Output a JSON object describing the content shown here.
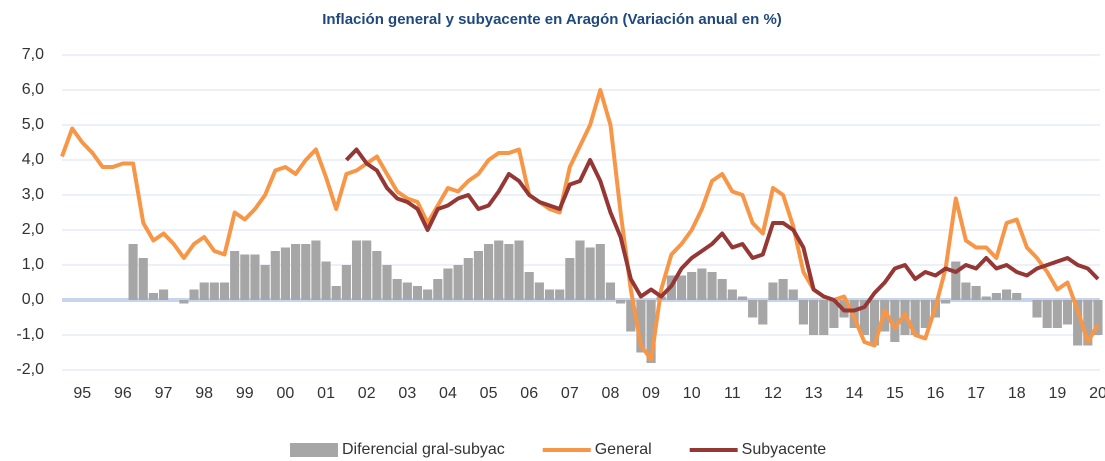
{
  "chart_data": {
    "type": "line",
    "title": "Inflación general y subyacente en Aragón  (Variación anual en %)",
    "x": [
      1995,
      1995.25,
      1995.5,
      1995.75,
      1996,
      1996.25,
      1996.5,
      1996.75,
      1997,
      1997.25,
      1997.5,
      1997.75,
      1998,
      1998.25,
      1998.5,
      1998.75,
      1999,
      1999.25,
      1999.5,
      1999.75,
      2000,
      2000.25,
      2000.5,
      2000.75,
      2001,
      2001.25,
      2001.5,
      2001.75,
      2002,
      2002.25,
      2002.5,
      2002.75,
      2003,
      2003.25,
      2003.5,
      2003.75,
      2004,
      2004.25,
      2004.5,
      2004.75,
      2005,
      2005.25,
      2005.5,
      2005.75,
      2006,
      2006.25,
      2006.5,
      2006.75,
      2007,
      2007.25,
      2007.5,
      2007.75,
      2008,
      2008.25,
      2008.5,
      2008.75,
      2009,
      2009.25,
      2009.5,
      2009.75,
      2010,
      2010.25,
      2010.5,
      2010.75,
      2011,
      2011.25,
      2011.5,
      2011.75,
      2012,
      2012.25,
      2012.5,
      2012.75,
      2013,
      2013.25,
      2013.5,
      2013.75,
      2014,
      2014.25,
      2014.5,
      2014.75,
      2015,
      2015.25,
      2015.5,
      2015.75,
      2016,
      2016.25,
      2016.5,
      2016.75,
      2017,
      2017.25,
      2017.5,
      2017.75,
      2018,
      2018.25,
      2018.5,
      2018.75,
      2019,
      2019.25,
      2019.5,
      2019.75,
      2020,
      2020.25,
      2020.5
    ],
    "series": [
      {
        "name": "Diferencial gral-subyac",
        "type": "bar",
        "color": "#a6a6a6",
        "values": [
          null,
          null,
          null,
          null,
          null,
          null,
          null,
          1.6,
          1.2,
          0.2,
          0.3,
          0.0,
          -0.1,
          0.3,
          0.5,
          0.5,
          0.5,
          1.4,
          1.3,
          1.3,
          1.0,
          1.4,
          1.5,
          1.6,
          1.6,
          1.7,
          1.1,
          0.4,
          1.0,
          1.7,
          1.7,
          1.4,
          1.0,
          0.6,
          0.5,
          0.4,
          0.3,
          0.6,
          0.9,
          1.0,
          1.2,
          1.4,
          1.6,
          1.7,
          1.6,
          1.7,
          0.8,
          0.5,
          0.3,
          0.3,
          1.2,
          1.7,
          1.5,
          1.6,
          0.5,
          -0.1,
          -0.9,
          -1.5,
          -1.8,
          0.1,
          0.7,
          0.7,
          0.8,
          0.9,
          0.8,
          0.6,
          0.3,
          0.1,
          -0.5,
          -0.7,
          0.5,
          0.6,
          0.3,
          -0.7,
          -1.0,
          -1.0,
          -0.8,
          -0.5,
          -0.8,
          -1.0,
          -1.3,
          -0.9,
          -1.2,
          -1.0,
          -1.0,
          -0.8,
          -0.5,
          -0.1,
          1.1,
          0.5,
          0.4,
          0.1,
          0.2,
          0.3,
          0.2,
          0.0,
          -0.5,
          -0.8,
          -0.8,
          -0.7,
          -1.3,
          -1.3,
          -1.0
        ]
      },
      {
        "name": "General",
        "type": "line",
        "color": "#f79646",
        "values": [
          4.1,
          4.9,
          4.5,
          4.2,
          3.8,
          3.8,
          3.9,
          3.9,
          2.2,
          1.7,
          1.9,
          1.6,
          1.2,
          1.6,
          1.8,
          1.4,
          1.3,
          2.5,
          2.3,
          2.6,
          3.0,
          3.7,
          3.8,
          3.6,
          4.0,
          4.3,
          3.5,
          2.6,
          3.6,
          3.7,
          3.9,
          4.1,
          3.6,
          3.1,
          2.9,
          2.8,
          2.2,
          2.7,
          3.2,
          3.1,
          3.4,
          3.6,
          4.0,
          4.2,
          4.2,
          4.3,
          3.0,
          2.8,
          2.6,
          2.5,
          3.8,
          4.4,
          5.0,
          6.0,
          5.0,
          2.5,
          0.3,
          -1.3,
          -1.7,
          0.3,
          1.3,
          1.6,
          2.0,
          2.6,
          3.4,
          3.6,
          3.1,
          3.0,
          2.2,
          1.9,
          3.2,
          3.0,
          2.1,
          0.8,
          0.3,
          0.1,
          0.0,
          0.1,
          -0.5,
          -1.2,
          -1.3,
          -0.3,
          -0.8,
          -0.4,
          -1.0,
          -1.1,
          -0.2,
          0.9,
          2.9,
          1.7,
          1.5,
          1.5,
          1.2,
          2.2,
          2.3,
          1.5,
          1.2,
          0.8,
          0.3,
          0.5,
          -0.3,
          -1.2,
          -0.7
        ]
      },
      {
        "name": "Subyacente",
        "type": "line",
        "color": "#953735",
        "values": [
          null,
          null,
          null,
          null,
          null,
          null,
          null,
          null,
          null,
          null,
          null,
          null,
          null,
          null,
          null,
          null,
          null,
          null,
          null,
          null,
          null,
          null,
          null,
          null,
          null,
          null,
          null,
          null,
          4.0,
          4.3,
          3.9,
          3.7,
          3.2,
          2.9,
          2.8,
          2.6,
          2.0,
          2.6,
          2.7,
          2.9,
          3.0,
          2.6,
          2.7,
          3.1,
          3.6,
          3.4,
          3.0,
          2.8,
          2.7,
          2.6,
          3.3,
          3.4,
          4.0,
          3.4,
          2.5,
          1.8,
          0.6,
          0.1,
          0.3,
          0.1,
          0.4,
          0.9,
          1.2,
          1.4,
          1.6,
          1.9,
          1.5,
          1.6,
          1.2,
          1.3,
          2.2,
          2.2,
          2.0,
          1.5,
          0.3,
          0.1,
          0.0,
          -0.3,
          -0.3,
          -0.2,
          0.2,
          0.5,
          0.9,
          1.0,
          0.6,
          0.8,
          0.7,
          0.9,
          0.8,
          1.0,
          0.9,
          1.2,
          0.9,
          1.0,
          0.8,
          0.7,
          0.9,
          1.0,
          1.1,
          1.2,
          1.0,
          0.9,
          0.6
        ]
      }
    ],
    "xlim": [
      1995,
      2020.55
    ],
    "xticks": [
      {
        "value": 1995.5,
        "label": "95"
      },
      {
        "value": 1996.5,
        "label": "96"
      },
      {
        "value": 1997.5,
        "label": "97"
      },
      {
        "value": 1998.5,
        "label": "98"
      },
      {
        "value": 1999.5,
        "label": "99"
      },
      {
        "value": 2000.5,
        "label": "00"
      },
      {
        "value": 2001.5,
        "label": "01"
      },
      {
        "value": 2002.5,
        "label": "02"
      },
      {
        "value": 2003.5,
        "label": "03"
      },
      {
        "value": 2004.5,
        "label": "04"
      },
      {
        "value": 2005.5,
        "label": "05"
      },
      {
        "value": 2006.5,
        "label": "06"
      },
      {
        "value": 2007.5,
        "label": "07"
      },
      {
        "value": 2008.5,
        "label": "08"
      },
      {
        "value": 2009.5,
        "label": "09"
      },
      {
        "value": 2010.5,
        "label": "10"
      },
      {
        "value": 2011.5,
        "label": "11"
      },
      {
        "value": 2012.5,
        "label": "12"
      },
      {
        "value": 2013.5,
        "label": "13"
      },
      {
        "value": 2014.5,
        "label": "14"
      },
      {
        "value": 2015.5,
        "label": "15"
      },
      {
        "value": 2016.5,
        "label": "16"
      },
      {
        "value": 2017.5,
        "label": "17"
      },
      {
        "value": 2018.5,
        "label": "18"
      },
      {
        "value": 2019.5,
        "label": "19"
      },
      {
        "value": 2020.5,
        "label": "20"
      }
    ],
    "ylim": [
      -2,
      7
    ],
    "yticks": [
      {
        "value": -2,
        "label": "-2,0"
      },
      {
        "value": -1,
        "label": "-1,0"
      },
      {
        "value": 0,
        "label": "0,0"
      },
      {
        "value": 1,
        "label": "1,0"
      },
      {
        "value": 2,
        "label": "2,0"
      },
      {
        "value": 3,
        "label": "3,0"
      },
      {
        "value": 4,
        "label": "4,0"
      },
      {
        "value": 5,
        "label": "5,0"
      },
      {
        "value": 6,
        "label": "6,0"
      },
      {
        "value": 7,
        "label": "7,0"
      }
    ],
    "grid": true
  }
}
